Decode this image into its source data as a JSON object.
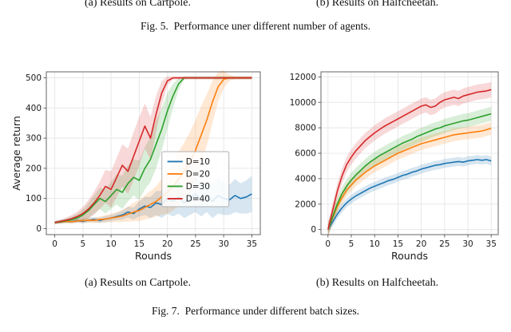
{
  "figure5": {
    "caption_a": "(a) Results on Cartpole.",
    "caption_b": "(b) Results on Halfcheetah.",
    "caption": "Fig. 5.  Performance uner different number of agents."
  },
  "figure7": {
    "caption_a": "(a) Results on Cartpole.",
    "caption_b": "(b) Results on Halfcheetah.",
    "caption": "Fig. 7.  Performance under different batch sizes."
  },
  "colors": {
    "blue": "#1f77b4",
    "orange": "#ff7f0e",
    "green": "#2ca02c",
    "red": "#d62728"
  },
  "chart_data": [
    {
      "type": "line",
      "title": "",
      "xlabel": "Rounds",
      "ylabel": "Average return",
      "xlim": [
        -1.5,
        36.5
      ],
      "ylim": [
        -20,
        520
      ],
      "xticks": [
        0,
        5,
        10,
        15,
        20,
        25,
        30,
        35
      ],
      "yticks": [
        0,
        100,
        200,
        300,
        400,
        500
      ],
      "grid": true,
      "legend_position": "center right",
      "legend_labels": [
        "D=10",
        "D=20",
        "D=30",
        "D=40"
      ],
      "x": [
        0,
        1,
        2,
        3,
        4,
        5,
        6,
        7,
        8,
        9,
        10,
        11,
        12,
        13,
        14,
        15,
        16,
        17,
        18,
        19,
        20,
        21,
        22,
        23,
        24,
        25,
        26,
        27,
        28,
        29,
        30,
        31,
        32,
        33,
        34,
        35
      ],
      "series": [
        {
          "name": "D=10",
          "color": "#1f77b4",
          "values": [
            20,
            22,
            25,
            23,
            26,
            24,
            28,
            30,
            27,
            32,
            35,
            40,
            45,
            55,
            50,
            65,
            75,
            70,
            85,
            80,
            100,
            90,
            105,
            85,
            100,
            115,
            95,
            105,
            90,
            110,
            100,
            95,
            110,
            100,
            105,
            115
          ],
          "band": [
            5,
            5,
            5,
            6,
            6,
            7,
            8,
            8,
            9,
            10,
            10,
            12,
            15,
            18,
            20,
            25,
            30,
            35,
            40,
            45,
            50,
            50,
            55,
            50,
            55,
            60,
            55,
            50,
            55,
            60,
            55,
            50,
            55,
            50,
            55,
            60
          ]
        },
        {
          "name": "D=20",
          "color": "#ff7f0e",
          "values": [
            20,
            22,
            24,
            23,
            25,
            26,
            28,
            27,
            30,
            32,
            35,
            38,
            42,
            48,
            55,
            60,
            70,
            80,
            90,
            105,
            120,
            140,
            165,
            190,
            220,
            260,
            310,
            360,
            420,
            470,
            495,
            500,
            500,
            500,
            500,
            500
          ],
          "band": [
            5,
            5,
            5,
            6,
            6,
            7,
            8,
            9,
            10,
            12,
            14,
            16,
            20,
            25,
            30,
            35,
            40,
            45,
            50,
            60,
            70,
            80,
            90,
            95,
            100,
            100,
            95,
            85,
            70,
            50,
            30,
            10,
            5,
            5,
            5,
            5
          ]
        },
        {
          "name": "D=30",
          "color": "#2ca02c",
          "values": [
            20,
            23,
            26,
            30,
            35,
            45,
            60,
            80,
            100,
            90,
            110,
            130,
            120,
            150,
            170,
            160,
            200,
            230,
            280,
            330,
            390,
            440,
            480,
            500,
            500,
            500,
            500,
            500,
            500,
            500,
            500,
            500,
            500,
            500,
            500,
            500
          ],
          "band": [
            5,
            6,
            8,
            10,
            14,
            18,
            25,
            30,
            35,
            40,
            45,
            50,
            55,
            60,
            60,
            65,
            70,
            75,
            80,
            70,
            60,
            40,
            20,
            5,
            5,
            5,
            5,
            5,
            5,
            5,
            5,
            5,
            5,
            5,
            5,
            5
          ]
        },
        {
          "name": "D=40",
          "color": "#d62728",
          "values": [
            20,
            24,
            28,
            33,
            40,
            50,
            65,
            85,
            110,
            140,
            130,
            170,
            210,
            190,
            240,
            290,
            340,
            300,
            380,
            450,
            490,
            500,
            500,
            500,
            500,
            500,
            500,
            500,
            500,
            500,
            500,
            500,
            500,
            500,
            500,
            500
          ],
          "band": [
            5,
            6,
            8,
            12,
            16,
            22,
            30,
            38,
            45,
            55,
            60,
            65,
            70,
            75,
            80,
            80,
            75,
            70,
            60,
            40,
            15,
            5,
            5,
            5,
            5,
            5,
            5,
            5,
            5,
            5,
            5,
            5,
            5,
            5,
            5,
            5
          ]
        }
      ]
    },
    {
      "type": "line",
      "title": "",
      "xlabel": "Rounds",
      "ylabel": "",
      "xlim": [
        -1.5,
        36.5
      ],
      "ylim": [
        -400,
        12400
      ],
      "xticks": [
        0,
        5,
        10,
        15,
        20,
        25,
        30,
        35
      ],
      "yticks": [
        0,
        2000,
        4000,
        6000,
        8000,
        10000,
        12000
      ],
      "grid": true,
      "legend_position": "none",
      "legend_labels": [],
      "x": [
        0,
        1,
        2,
        3,
        4,
        5,
        6,
        7,
        8,
        9,
        10,
        11,
        12,
        13,
        14,
        15,
        16,
        17,
        18,
        19,
        20,
        21,
        22,
        23,
        24,
        25,
        26,
        27,
        28,
        29,
        30,
        31,
        32,
        33,
        34,
        35
      ],
      "series": [
        {
          "name": "D=10",
          "color": "#1f77b4",
          "values": [
            0,
            600,
            1200,
            1700,
            2100,
            2400,
            2650,
            2850,
            3050,
            3250,
            3400,
            3550,
            3700,
            3850,
            3950,
            4100,
            4250,
            4350,
            4500,
            4600,
            4750,
            4850,
            4950,
            5050,
            5100,
            5200,
            5250,
            5300,
            5350,
            5300,
            5400,
            5450,
            5500,
            5450,
            5500,
            5400
          ],
          "band": 350
        },
        {
          "name": "D=20",
          "color": "#ff7f0e",
          "values": [
            0,
            900,
            1800,
            2500,
            3100,
            3500,
            3900,
            4200,
            4500,
            4750,
            5000,
            5200,
            5400,
            5600,
            5800,
            6000,
            6150,
            6300,
            6450,
            6600,
            6750,
            6850,
            6950,
            7050,
            7150,
            7250,
            7350,
            7450,
            7500,
            7550,
            7600,
            7650,
            7700,
            7750,
            7850,
            7950
          ],
          "band": 500
        },
        {
          "name": "D=30",
          "color": "#2ca02c",
          "values": [
            0,
            1000,
            2000,
            2800,
            3400,
            3900,
            4300,
            4650,
            5000,
            5300,
            5550,
            5800,
            6000,
            6200,
            6400,
            6600,
            6800,
            6950,
            7100,
            7300,
            7450,
            7600,
            7750,
            7900,
            8000,
            8150,
            8250,
            8350,
            8450,
            8550,
            8600,
            8700,
            8800,
            8900,
            9000,
            9100
          ],
          "band": 550
        },
        {
          "name": "D=40",
          "color": "#d62728",
          "values": [
            0,
            1500,
            3000,
            4200,
            5100,
            5700,
            6200,
            6600,
            7000,
            7300,
            7600,
            7850,
            8100,
            8300,
            8500,
            8700,
            8900,
            9100,
            9300,
            9500,
            9700,
            9800,
            9600,
            9700,
            10000,
            10200,
            10300,
            10400,
            10300,
            10500,
            10600,
            10700,
            10800,
            10850,
            10900,
            11000
          ],
          "band": 600
        }
      ]
    }
  ]
}
